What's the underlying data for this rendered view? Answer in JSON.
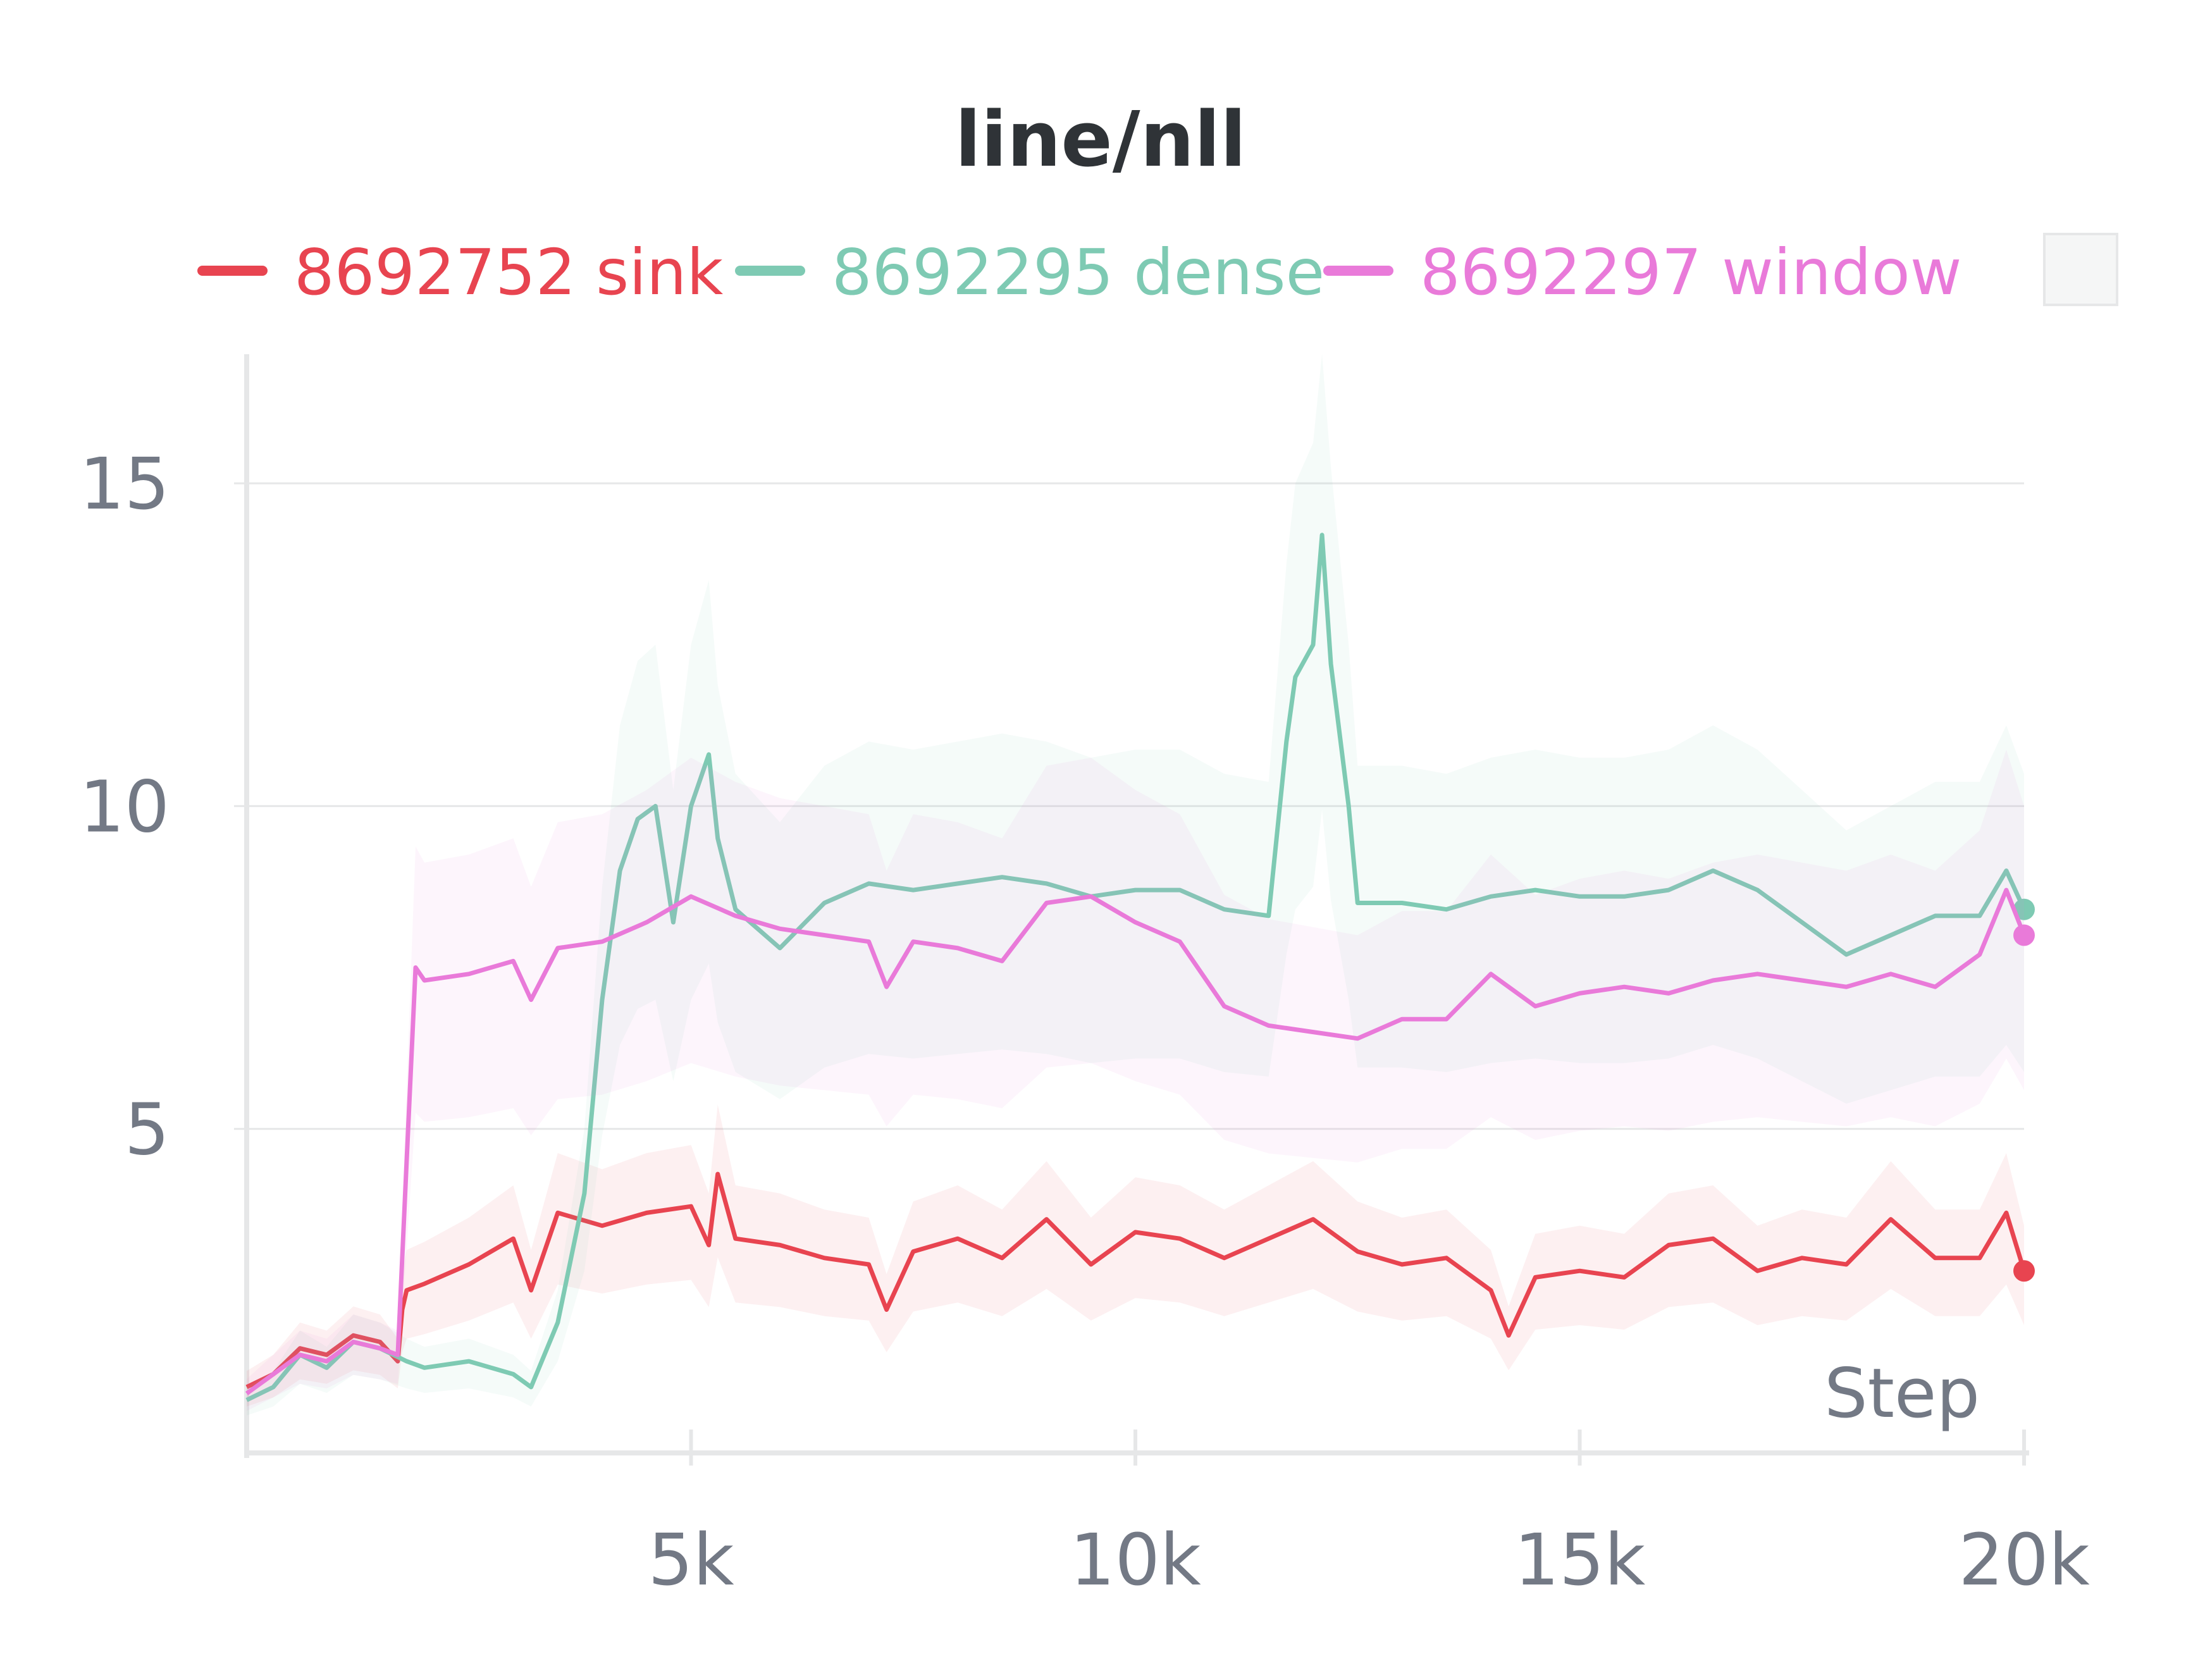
{
  "chart_data": {
    "type": "line",
    "title": "line/nll",
    "xlabel": "Step",
    "ylabel": "",
    "xlim": [
      0,
      20000
    ],
    "ylim": [
      0,
      17
    ],
    "x_ticks": [
      5000,
      10000,
      15000,
      20000
    ],
    "x_tick_labels": [
      "5k",
      "10k",
      "15k",
      "20k"
    ],
    "y_ticks": [
      5,
      10,
      15
    ],
    "y_tick_labels": [
      "5",
      "10",
      "15"
    ],
    "grid": true,
    "legend_position": "top",
    "series": [
      {
        "name": "8692752 sink",
        "color": "#e84450",
        "x": [
          0,
          300,
          600,
          900,
          1200,
          1500,
          1700,
          1750,
          1800,
          2000,
          2500,
          3000,
          3200,
          3500,
          4000,
          4500,
          5000,
          5200,
          5300,
          5500,
          6000,
          6500,
          7000,
          7200,
          7500,
          8000,
          8500,
          9000,
          9500,
          10000,
          10500,
          11000,
          11500,
          12000,
          12500,
          13000,
          13500,
          14000,
          14200,
          14500,
          15000,
          15500,
          16000,
          16500,
          17000,
          17500,
          18000,
          18500,
          19000,
          19500,
          19800,
          20000
        ],
        "values": [
          1.0,
          1.2,
          1.6,
          1.5,
          1.8,
          1.7,
          1.4,
          2.2,
          2.5,
          2.6,
          2.9,
          3.3,
          2.5,
          3.7,
          3.5,
          3.7,
          3.8,
          3.2,
          4.3,
          3.3,
          3.2,
          3.0,
          2.9,
          2.2,
          3.1,
          3.3,
          3.0,
          3.6,
          2.9,
          3.4,
          3.3,
          3.0,
          3.3,
          3.6,
          3.1,
          2.9,
          3.0,
          2.5,
          1.8,
          2.7,
          2.8,
          2.7,
          3.2,
          3.3,
          2.8,
          3.0,
          2.9,
          3.6,
          3.0,
          3.0,
          3.7,
          2.8
        ]
      },
      {
        "name": "8692295 dense",
        "color": "#7ecab3",
        "x": [
          0,
          300,
          600,
          900,
          1200,
          1500,
          1800,
          2000,
          2500,
          3000,
          3200,
          3500,
          3800,
          4000,
          4200,
          4400,
          4600,
          4800,
          5000,
          5200,
          5300,
          5500,
          6000,
          6500,
          7000,
          7500,
          8000,
          8500,
          9000,
          9500,
          10000,
          10500,
          11000,
          11500,
          11700,
          11800,
          12000,
          12100,
          12200,
          12400,
          12500,
          13000,
          13500,
          14000,
          14500,
          15000,
          15500,
          16000,
          16500,
          17000,
          17500,
          18000,
          18500,
          19000,
          19500,
          19800,
          20000
        ],
        "values": [
          0.8,
          1.0,
          1.5,
          1.3,
          1.7,
          1.6,
          1.4,
          1.3,
          1.4,
          1.2,
          1.0,
          2.0,
          4.0,
          7.0,
          9.0,
          9.8,
          10.0,
          8.2,
          10.0,
          10.8,
          9.5,
          8.4,
          7.8,
          8.5,
          8.8,
          8.7,
          8.8,
          8.9,
          8.8,
          8.6,
          8.7,
          8.7,
          8.4,
          8.3,
          11.0,
          12.0,
          12.5,
          14.2,
          12.2,
          10.0,
          8.5,
          8.5,
          8.4,
          8.6,
          8.7,
          8.6,
          8.6,
          8.7,
          9.0,
          8.7,
          8.2,
          7.7,
          8.0,
          8.3,
          8.3,
          9.0,
          8.4
        ]
      },
      {
        "name": "8692297 window",
        "color": "#e97ad9",
        "x": [
          0,
          300,
          600,
          900,
          1200,
          1500,
          1700,
          1800,
          1900,
          2000,
          2500,
          3000,
          3200,
          3500,
          4000,
          4500,
          5000,
          5500,
          6000,
          6500,
          7000,
          7200,
          7500,
          8000,
          8500,
          9000,
          9500,
          10000,
          10500,
          11000,
          11500,
          12000,
          12500,
          13000,
          13500,
          14000,
          14500,
          15000,
          15500,
          16000,
          16500,
          17000,
          17500,
          18000,
          18500,
          19000,
          19500,
          19800,
          20000
        ],
        "values": [
          0.9,
          1.2,
          1.5,
          1.4,
          1.7,
          1.6,
          1.5,
          4.5,
          7.5,
          7.3,
          7.4,
          7.6,
          7.0,
          7.8,
          7.9,
          8.2,
          8.6,
          8.3,
          8.1,
          8.0,
          7.9,
          7.2,
          7.9,
          7.8,
          7.6,
          8.5,
          8.6,
          8.2,
          7.9,
          6.9,
          6.6,
          6.5,
          6.4,
          6.7,
          6.7,
          7.4,
          6.9,
          7.1,
          7.2,
          7.1,
          7.3,
          7.4,
          7.3,
          7.2,
          7.4,
          7.2,
          7.7,
          8.7,
          8.0
        ]
      }
    ]
  }
}
